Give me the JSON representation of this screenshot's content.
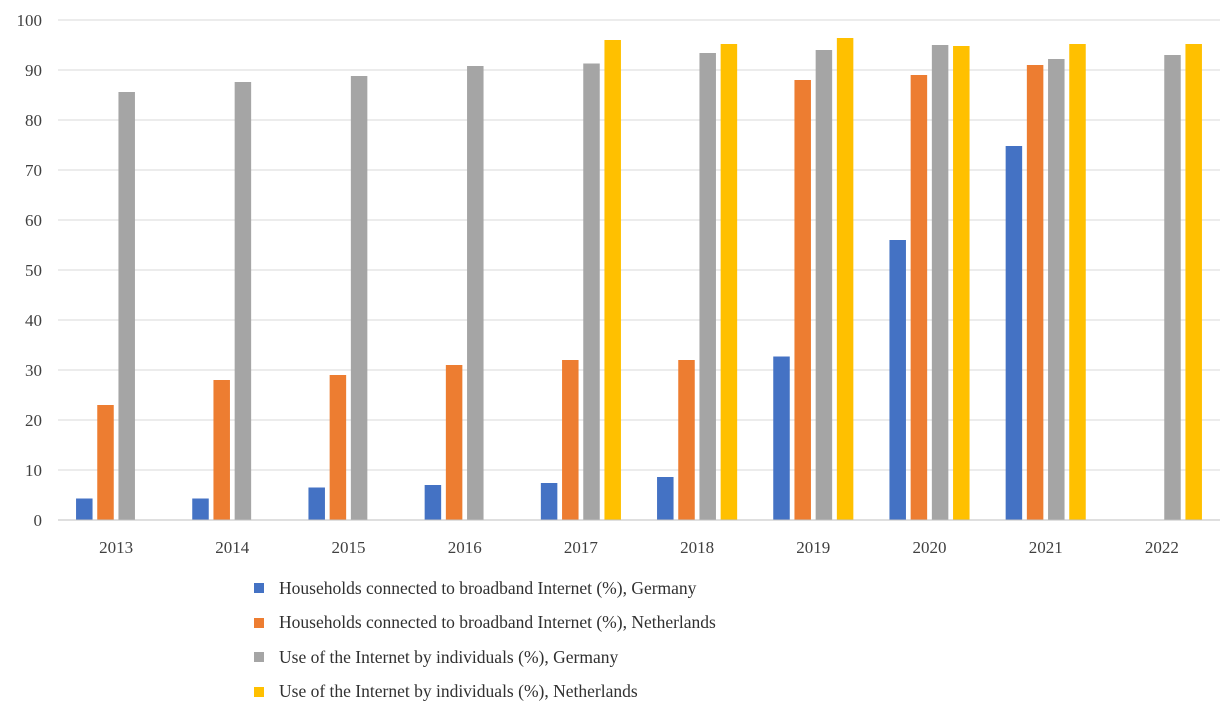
{
  "chart_data": {
    "type": "bar",
    "title": "",
    "xlabel": "",
    "ylabel": "",
    "ylim": [
      0,
      100
    ],
    "yticks": [
      "0",
      "10",
      "20",
      "30",
      "40",
      "50",
      "60",
      "70",
      "80",
      "90",
      "100"
    ],
    "grid": true,
    "legend_position": "bottom",
    "categories": [
      "2013",
      "2014",
      "2015",
      "2016",
      "2017",
      "2018",
      "2019",
      "2020",
      "2021",
      "2022"
    ],
    "series": [
      {
        "name": "Households connected to broadband Internet (%), Germany",
        "color": "#4472C4",
        "values": [
          4.3,
          4.3,
          6.5,
          7.0,
          7.4,
          8.6,
          32.7,
          56.0,
          74.8,
          null
        ]
      },
      {
        "name": "Households connected to broadband Internet (%), Netherlands",
        "color": "#ED7D31",
        "values": [
          23.0,
          28.0,
          29.0,
          31.0,
          32.0,
          32.0,
          88.0,
          89.0,
          91.0,
          null
        ]
      },
      {
        "name": "Use of the Internet by individuals (%), Germany",
        "color": "#A5A5A5",
        "values": [
          85.6,
          87.6,
          88.8,
          90.8,
          91.3,
          93.4,
          94.0,
          95.0,
          92.2,
          93.0
        ]
      },
      {
        "name": "Use of the Internet by individuals (%), Netherlands",
        "color": "#FFC000",
        "values": [
          null,
          null,
          null,
          null,
          96.0,
          95.2,
          96.4,
          94.8,
          95.2,
          95.2
        ]
      }
    ]
  }
}
